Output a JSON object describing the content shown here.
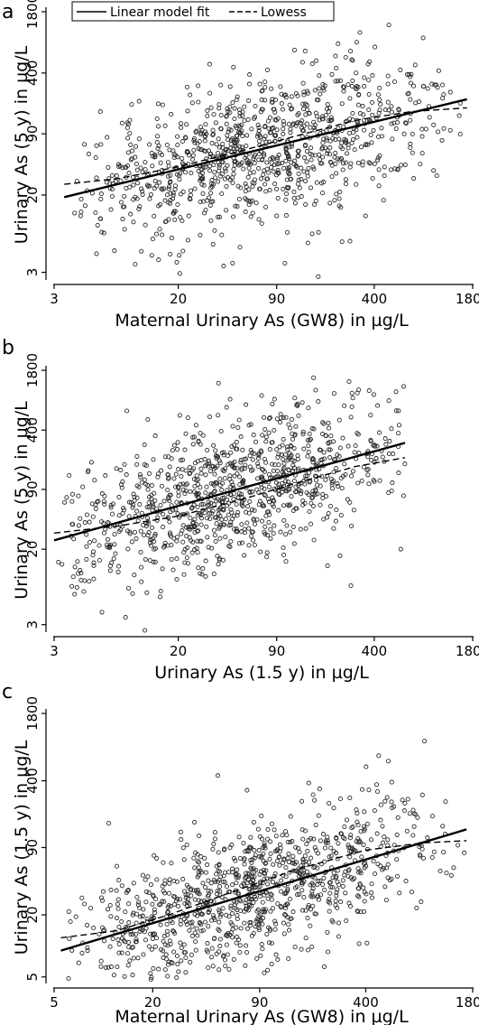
{
  "chart_data": [
    {
      "type": "scatter",
      "panel_label": "a",
      "xlabel": "Maternal Urinary As (GW8) in µg/L",
      "ylabel": "Urinary As (5 y) in µg/L",
      "x_scale": "log",
      "y_scale": "log",
      "x_ticks": [
        3,
        20,
        90,
        400,
        1800
      ],
      "y_ticks": [
        3,
        20,
        90,
        400,
        1800
      ],
      "xlim": [
        3,
        1800
      ],
      "ylim": [
        2.6,
        1800
      ],
      "legend": {
        "placement": "top",
        "entries": [
          {
            "label": "Linear model fit",
            "style": "solid"
          },
          {
            "label": "Lowess",
            "style": "dashed"
          }
        ]
      },
      "series": [
        {
          "name": "Linear model fit",
          "kind": "line",
          "x": [
            3.5,
            1650
          ],
          "y": [
            19,
            210
          ]
        },
        {
          "name": "Lowess",
          "kind": "line",
          "x": [
            3.5,
            8,
            20,
            50,
            120,
            300,
            700,
            1650
          ],
          "y": [
            26,
            30,
            40,
            58,
            85,
            125,
            155,
            170
          ]
        }
      ],
      "cloud": {
        "n": 1000,
        "x_center": 70,
        "x_spread": 0.62,
        "x_min": 4,
        "x_max": 1500,
        "resid_sd": 0.38,
        "fit": [
          19,
          210
        ],
        "x_fit": [
          3.5,
          1650
        ]
      },
      "outliers": [
        {
          "x": 90,
          "y": 12
        },
        {
          "x": 170,
          "y": 2.7
        },
        {
          "x": 350,
          "y": 12
        },
        {
          "x": 500,
          "y": 1300
        },
        {
          "x": 40,
          "y": 3.5
        },
        {
          "x": 230,
          "y": 820
        },
        {
          "x": 4.5,
          "y": 12
        }
      ]
    },
    {
      "type": "scatter",
      "panel_label": "b",
      "xlabel": "Urinary As (1.5 y) in µg/L",
      "ylabel": "Urinary As (5 y) in µg/L",
      "x_scale": "log",
      "y_scale": "log",
      "x_ticks": [
        3,
        20,
        90,
        400,
        1800
      ],
      "y_ticks": [
        3,
        20,
        90,
        400,
        1800
      ],
      "xlim": [
        3,
        1800
      ],
      "ylim": [
        2.6,
        1800
      ],
      "series": [
        {
          "name": "Linear model fit",
          "kind": "line",
          "x": [
            3,
            640
          ],
          "y": [
            25,
            290
          ]
        },
        {
          "name": "Lowess",
          "kind": "line",
          "x": [
            3,
            8,
            20,
            50,
            120,
            300,
            640
          ],
          "y": [
            30,
            36,
            46,
            68,
            105,
            160,
            200
          ]
        }
      ],
      "cloud": {
        "n": 1000,
        "x_center": 45,
        "x_spread": 0.58,
        "x_min": 3,
        "x_max": 640,
        "resid_sd": 0.38,
        "fit": [
          25,
          290
        ],
        "x_fit": [
          3,
          640
        ]
      },
      "outliers": [
        {
          "x": 12,
          "y": 2.6
        },
        {
          "x": 37,
          "y": 1300
        },
        {
          "x": 560,
          "y": 650
        },
        {
          "x": 600,
          "y": 20
        },
        {
          "x": 14,
          "y": 28
        },
        {
          "x": 280,
          "y": 8
        }
      ]
    },
    {
      "type": "scatter",
      "panel_label": "c",
      "xlabel": "Maternal Urinary As (GW8) in µg/L",
      "ylabel": "Urinary As (1.5 y) in µg/L",
      "x_scale": "log",
      "y_scale": "log",
      "x_ticks": [
        5,
        20,
        90,
        400,
        1800
      ],
      "y_ticks": [
        5,
        20,
        90,
        400,
        1800
      ],
      "xlim": [
        5,
        1800
      ],
      "ylim": [
        4.5,
        1800
      ],
      "series": [
        {
          "name": "Linear model fit",
          "kind": "line",
          "x": [
            5.5,
            1650
          ],
          "y": [
            9,
            135
          ]
        },
        {
          "name": "Lowess",
          "kind": "line",
          "x": [
            5.5,
            12,
            25,
            60,
            150,
            400,
            900,
            1650
          ],
          "y": [
            12,
            14,
            20,
            33,
            55,
            85,
            100,
            105
          ]
        }
      ],
      "cloud": {
        "n": 1000,
        "x_center": 80,
        "x_spread": 0.58,
        "x_min": 6,
        "x_max": 1500,
        "resid_sd": 0.34,
        "fit": [
          9,
          135
        ],
        "x_fit": [
          5.5,
          1650
        ]
      },
      "outliers": [
        {
          "x": 480,
          "y": 700
        },
        {
          "x": 550,
          "y": 620
        },
        {
          "x": 50,
          "y": 450
        },
        {
          "x": 1600,
          "y": 80
        },
        {
          "x": 8,
          "y": 9
        }
      ]
    }
  ]
}
